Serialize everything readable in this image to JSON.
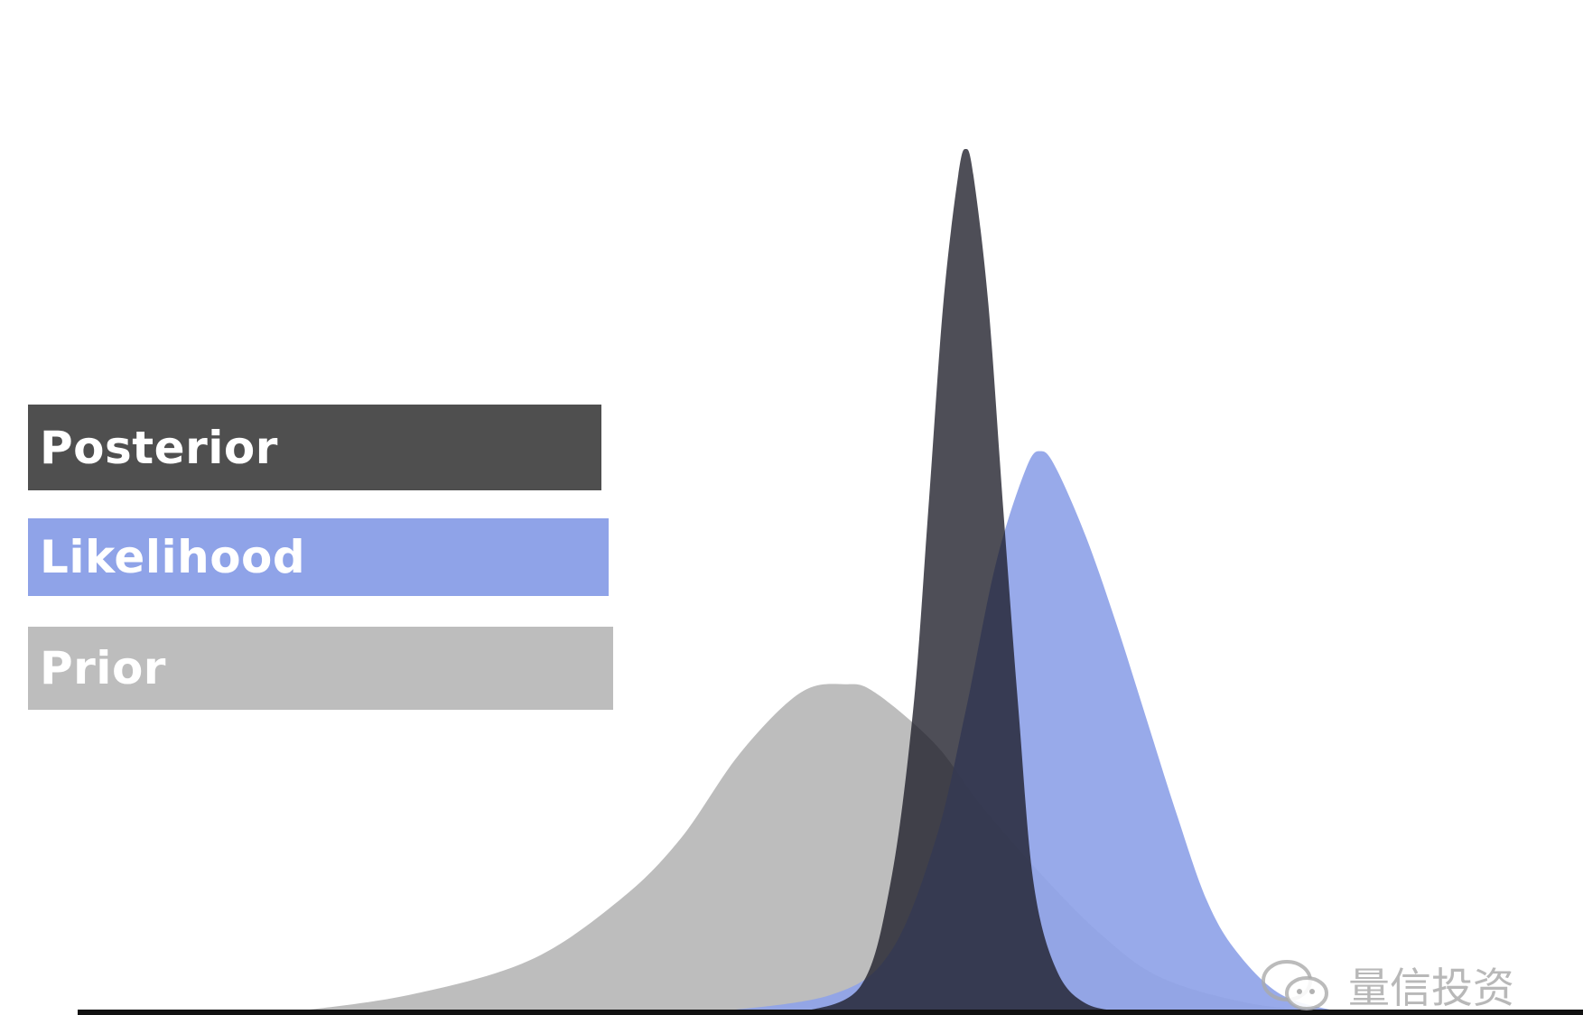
{
  "chart_data": {
    "type": "area",
    "title": "",
    "xlabel": "",
    "ylabel": "",
    "xlim": [
      0,
      100
    ],
    "ylim": [
      0,
      1.0
    ],
    "grid": false,
    "legend_position": "left",
    "series": [
      {
        "name": "Prior",
        "color": "#bdbdbd",
        "peak_x": 50,
        "peak_density": 0.38,
        "x": [
          14,
          22,
          30,
          36,
          40,
          44,
          48,
          51,
          53,
          57,
          60,
          64,
          68,
          72,
          78,
          84
        ],
        "values": [
          0.0,
          0.02,
          0.06,
          0.13,
          0.2,
          0.3,
          0.37,
          0.38,
          0.37,
          0.31,
          0.24,
          0.16,
          0.09,
          0.04,
          0.01,
          0.0
        ]
      },
      {
        "name": "Likelihood",
        "color": "#8fa3e8",
        "peak_x": 64,
        "peak_density": 0.65,
        "x": [
          42,
          50,
          54,
          57,
          59,
          61,
          63,
          64,
          65,
          67,
          69,
          71,
          73,
          75,
          77,
          80,
          84
        ],
        "values": [
          0.0,
          0.02,
          0.07,
          0.2,
          0.35,
          0.52,
          0.63,
          0.65,
          0.63,
          0.55,
          0.45,
          0.34,
          0.23,
          0.13,
          0.07,
          0.02,
          0.0
        ]
      },
      {
        "name": "Posterior",
        "color": "#4f4f4f",
        "peak_x": 59,
        "peak_density": 1.0,
        "x": [
          48,
          52,
          54,
          55.5,
          56.5,
          57.5,
          58.5,
          59,
          59.5,
          60.5,
          61.5,
          62.5,
          63.5,
          65,
          67,
          70
        ],
        "values": [
          0.0,
          0.03,
          0.15,
          0.35,
          0.58,
          0.82,
          0.97,
          1.0,
          0.97,
          0.82,
          0.58,
          0.35,
          0.15,
          0.05,
          0.01,
          0.0
        ]
      }
    ]
  },
  "legend": {
    "posterior_label": "Posterior",
    "likelihood_label": "Likelihood",
    "prior_label": "Prior"
  },
  "watermark": {
    "text": "量信投资"
  }
}
